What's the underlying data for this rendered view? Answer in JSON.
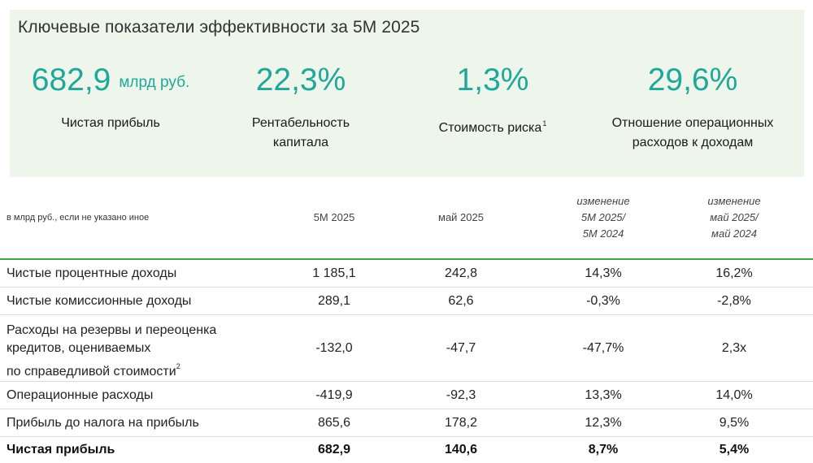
{
  "kpi": {
    "title": "Ключевые показатели эффективности за 5М 2025",
    "accent_color": "#1fa899",
    "items": [
      {
        "value": "682,9",
        "unit": "млрд руб.",
        "label_lines": [
          "Чистая прибыль"
        ],
        "footnote": ""
      },
      {
        "value": "22,3%",
        "unit": "",
        "label_lines": [
          "Рентабельность",
          "капитала"
        ],
        "footnote": ""
      },
      {
        "value": "1,3%",
        "unit": "",
        "label_lines": [
          "Стоимость риска"
        ],
        "footnote": "1"
      },
      {
        "value": "29,6%",
        "unit": "",
        "label_lines": [
          "Отношение операционных",
          "расходов к доходам"
        ],
        "footnote": ""
      }
    ]
  },
  "table": {
    "caption": "в млрд руб., если не указано иное",
    "columns": [
      {
        "lines": [
          "5М 2025"
        ],
        "italic": false
      },
      {
        "lines": [
          "май 2025"
        ],
        "italic": false
      },
      {
        "lines": [
          "изменение",
          "5М 2025/",
          "5М 2024"
        ],
        "italic": true
      },
      {
        "lines": [
          "изменение",
          "май 2025/",
          "май 2024"
        ],
        "italic": true
      }
    ],
    "rows": [
      {
        "label_lines": [
          "Чистые процентные доходы"
        ],
        "footnote": "",
        "values": [
          "1 185,1",
          "242,8",
          "14,3%",
          "16,2%"
        ],
        "bold": false
      },
      {
        "label_lines": [
          "Чистые комиссионные доходы"
        ],
        "footnote": "",
        "values": [
          "289,1",
          "62,6",
          "-0,3%",
          "-2,8%"
        ],
        "bold": false
      },
      {
        "label_lines": [
          "Расходы на резервы и переоценка",
          "кредитов, оцениваемых",
          "по справедливой стоимости"
        ],
        "footnote": "2",
        "values": [
          "-132,0",
          "-47,7",
          "-47,7%",
          "2,3x"
        ],
        "bold": false
      },
      {
        "label_lines": [
          "Операционные расходы"
        ],
        "footnote": "",
        "values": [
          "-419,9",
          "-92,3",
          "13,3%",
          "14,0%"
        ],
        "bold": false
      },
      {
        "label_lines": [
          "Прибыль до налога на прибыль"
        ],
        "footnote": "",
        "values": [
          "865,6",
          "178,2",
          "12,3%",
          "9,5%"
        ],
        "bold": false
      },
      {
        "label_lines": [
          "Чистая прибыль"
        ],
        "footnote": "",
        "values": [
          "682,9",
          "140,6",
          "8,7%",
          "5,4%"
        ],
        "bold": true
      }
    ]
  }
}
